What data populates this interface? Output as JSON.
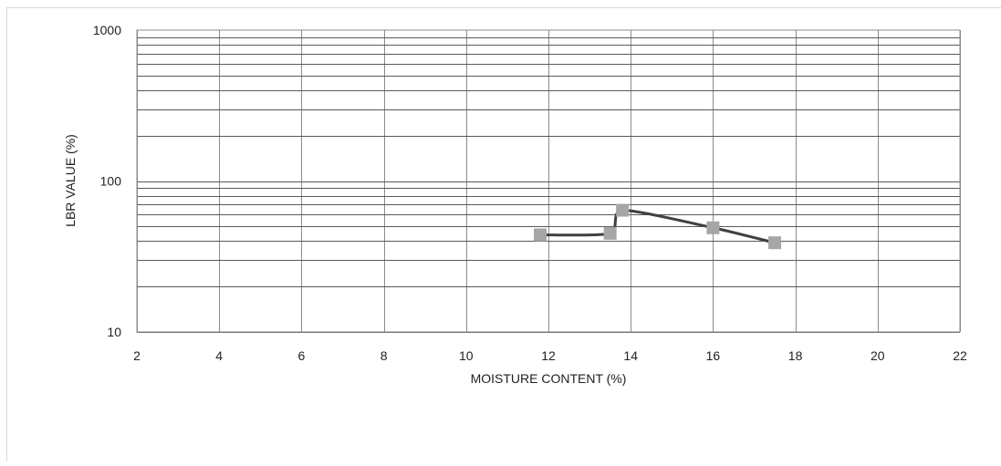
{
  "chart_data": {
    "type": "line",
    "title": "",
    "xlabel": "MOISTURE CONTENT (%)",
    "ylabel": "LBR VALUE (%)",
    "xlim": [
      2,
      22
    ],
    "ylim": [
      10,
      1000
    ],
    "yscale": "log",
    "x_ticks": [
      "2",
      "4",
      "6",
      "8",
      "10",
      "12",
      "14",
      "16",
      "18",
      "20",
      "22"
    ],
    "y_ticks": [
      "10",
      "100",
      "1000"
    ],
    "grid": true,
    "legend": "none",
    "series": [
      {
        "x": [
          11.8,
          13.5,
          13.8,
          16.0,
          17.5
        ],
        "y": [
          44,
          45,
          64,
          49,
          39
        ],
        "line_color": "#404040",
        "marker": "square",
        "marker_color": "#a6a6a6"
      }
    ]
  }
}
